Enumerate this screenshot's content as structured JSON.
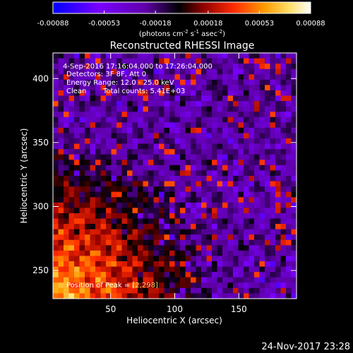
{
  "colorbar": {
    "tick_labels": [
      "-0.00088",
      "-0.00053",
      "-0.00018",
      "0.00018",
      "0.00053",
      "0.00088"
    ],
    "range": [
      -0.00088,
      0.00088
    ],
    "unit_main": "(photons cm",
    "unit_exp1": "-2",
    "unit_mid": " s",
    "unit_exp2": "-1",
    "unit_tail": " asec",
    "unit_exp3": "-2",
    "unit_close": ")",
    "colors": [
      "#0000ff",
      "#7a00ff",
      "#5e00a8",
      "#000000",
      "#8a0000",
      "#ff2a00",
      "#ff9a00",
      "#ffe06a",
      "#ffffff"
    ]
  },
  "chart_data": {
    "type": "heatmap",
    "title": "Reconstructed RHESSI Image",
    "xlabel": "Heliocentric X (arcsec)",
    "ylabel": "Heliocentric Y (arcsec)",
    "xlim": [
      5,
      195
    ],
    "ylim": [
      228,
      420
    ],
    "xticks": [
      50,
      100,
      150
    ],
    "yticks": [
      250,
      300,
      350,
      400
    ],
    "grid": false,
    "annotations": {
      "time_range": "4-Sep-2016 17:16:04.000 to 17:26:04.000",
      "detectors": "Detectors: 3F 8F, Att 0",
      "energy": "Energy Range: 12.0 - 25.0 keV",
      "clean": "Clean",
      "counts": "Total counts: 5.41E+03",
      "peak": "Position of Peak = [",
      "peak_hidden": "2,298]"
    },
    "hot_region": "lower-left",
    "value_range": [
      -0.00088,
      0.00088
    ]
  },
  "footer": {
    "timestamp": "24-Nov-2017 23:28"
  }
}
